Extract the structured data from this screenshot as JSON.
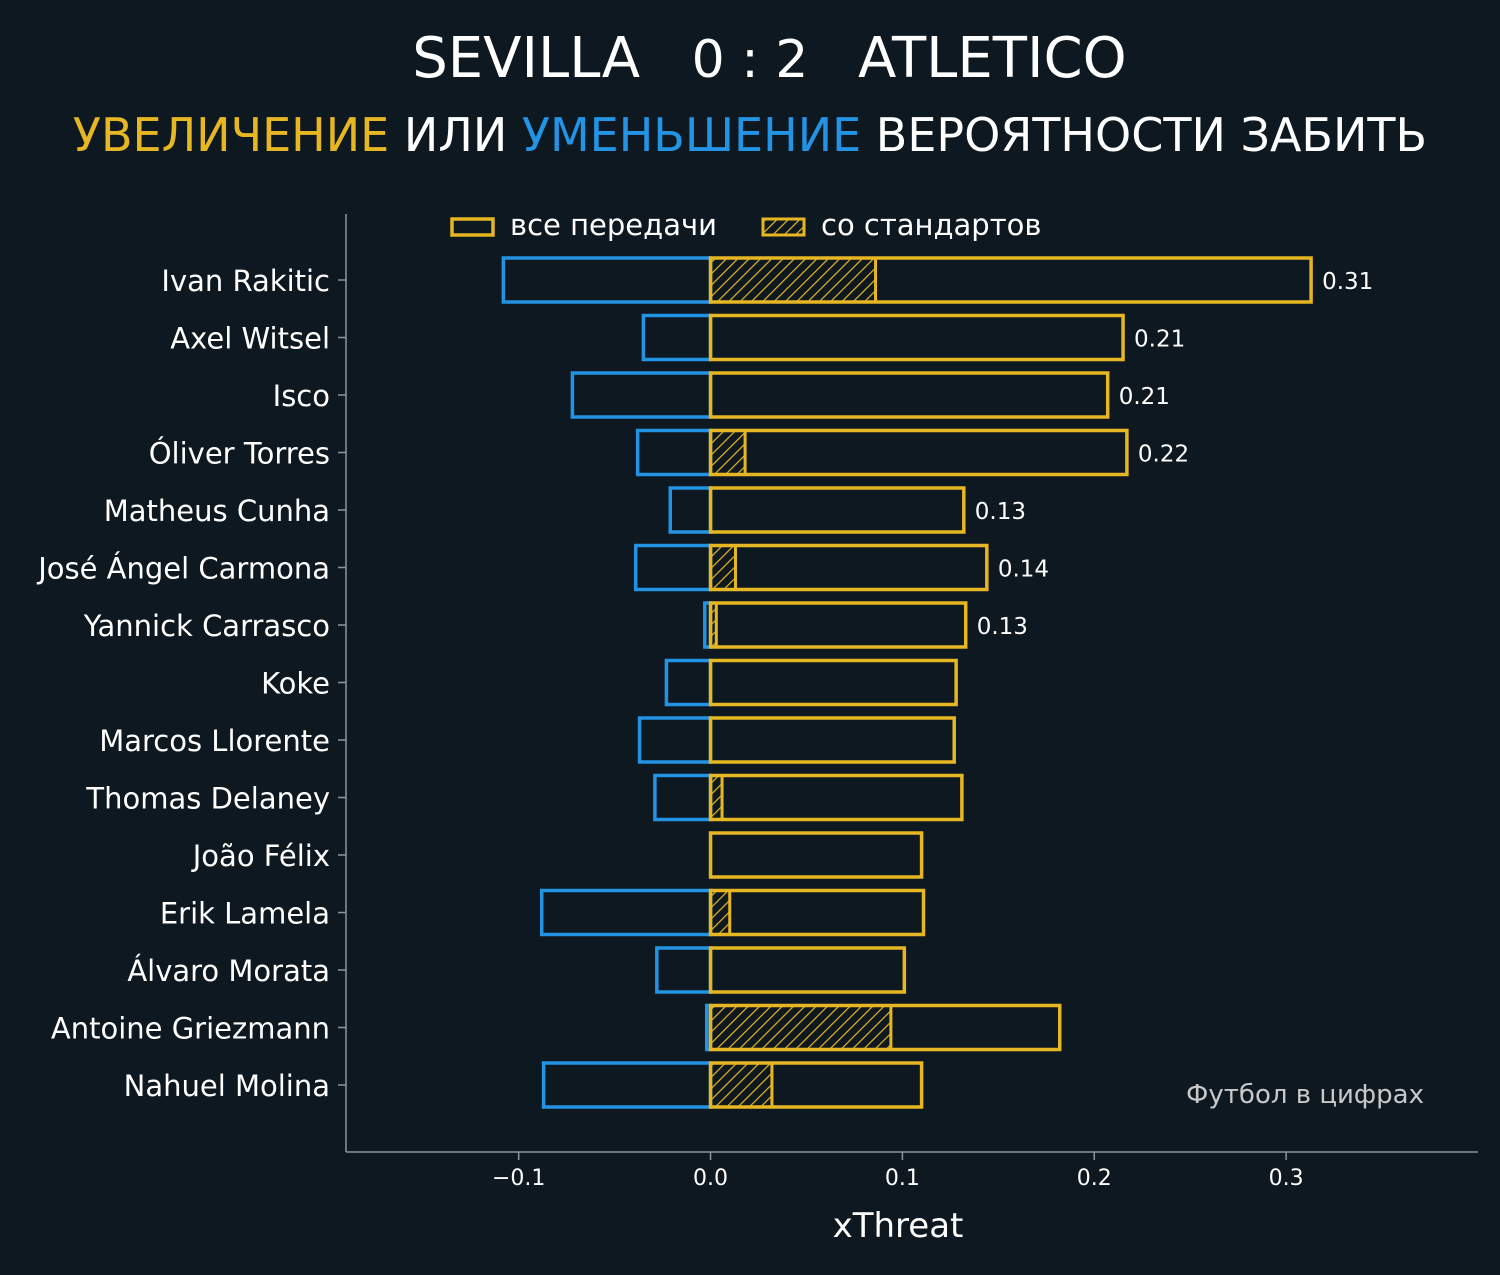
{
  "header": {
    "home_team": "SEVILLA",
    "score": "0 : 2",
    "away_team": "ATLETICO",
    "subtitle_increase": "УВЕЛИЧЕНИЕ",
    "subtitle_or": "ИЛИ",
    "subtitle_decrease": "УМЕНЬШЕНИЕ",
    "subtitle_rest": "ВЕРОЯТНОСТИ ЗАБИТЬ"
  },
  "credit": "Футбол в цифрах",
  "colors": {
    "background": "#0e1821",
    "increase": "#e6b623",
    "decrease": "#2393e4",
    "axis": "#8a96a0"
  },
  "chart_data": {
    "type": "bar",
    "orientation": "horizontal",
    "xlabel": "xThreat",
    "xlim": [
      -0.19,
      0.4
    ],
    "xticks": [
      -0.1,
      0.0,
      0.1,
      0.2,
      0.3
    ],
    "xtick_labels": [
      "−0.1",
      "0.0",
      "0.1",
      "0.2",
      "0.3"
    ],
    "legend": {
      "placement": "top-center",
      "entries": [
        {
          "label": "все передачи",
          "style": "outline"
        },
        {
          "label": "со стандартов",
          "style": "hatched"
        }
      ]
    },
    "players": [
      {
        "name": "Ivan Rakitic",
        "negative": -0.108,
        "positive": 0.313,
        "set_piece": 0.086,
        "label": "0.31"
      },
      {
        "name": "Axel Witsel",
        "negative": -0.035,
        "positive": 0.215,
        "set_piece": 0.0,
        "label": "0.21"
      },
      {
        "name": "Isco",
        "negative": -0.072,
        "positive": 0.207,
        "set_piece": 0.0,
        "label": "0.21"
      },
      {
        "name": "Óliver Torres",
        "negative": -0.038,
        "positive": 0.217,
        "set_piece": 0.018,
        "label": "0.22"
      },
      {
        "name": "Matheus Cunha",
        "negative": -0.021,
        "positive": 0.132,
        "set_piece": 0.0,
        "label": "0.13"
      },
      {
        "name": "José Ángel Carmona",
        "negative": -0.039,
        "positive": 0.144,
        "set_piece": 0.013,
        "label": "0.14"
      },
      {
        "name": "Yannick Carrasco",
        "negative": -0.003,
        "positive": 0.133,
        "set_piece": 0.003,
        "label": "0.13"
      },
      {
        "name": "Koke",
        "negative": -0.023,
        "positive": 0.128,
        "set_piece": 0.0,
        "label": ""
      },
      {
        "name": "Marcos Llorente",
        "negative": -0.037,
        "positive": 0.127,
        "set_piece": 0.0,
        "label": ""
      },
      {
        "name": "Thomas Delaney",
        "negative": -0.029,
        "positive": 0.131,
        "set_piece": 0.006,
        "label": ""
      },
      {
        "name": "João Félix",
        "negative": 0.0,
        "positive": 0.11,
        "set_piece": 0.0,
        "label": ""
      },
      {
        "name": "Erik Lamela",
        "negative": -0.088,
        "positive": 0.111,
        "set_piece": 0.01,
        "label": ""
      },
      {
        "name": "Álvaro Morata",
        "negative": -0.028,
        "positive": 0.101,
        "set_piece": 0.0,
        "label": ""
      },
      {
        "name": "Antoine Griezmann",
        "negative": -0.002,
        "positive": 0.182,
        "set_piece": 0.094,
        "label": ""
      },
      {
        "name": "Nahuel Molina",
        "negative": -0.087,
        "positive": 0.11,
        "set_piece": 0.032,
        "label": ""
      }
    ]
  }
}
